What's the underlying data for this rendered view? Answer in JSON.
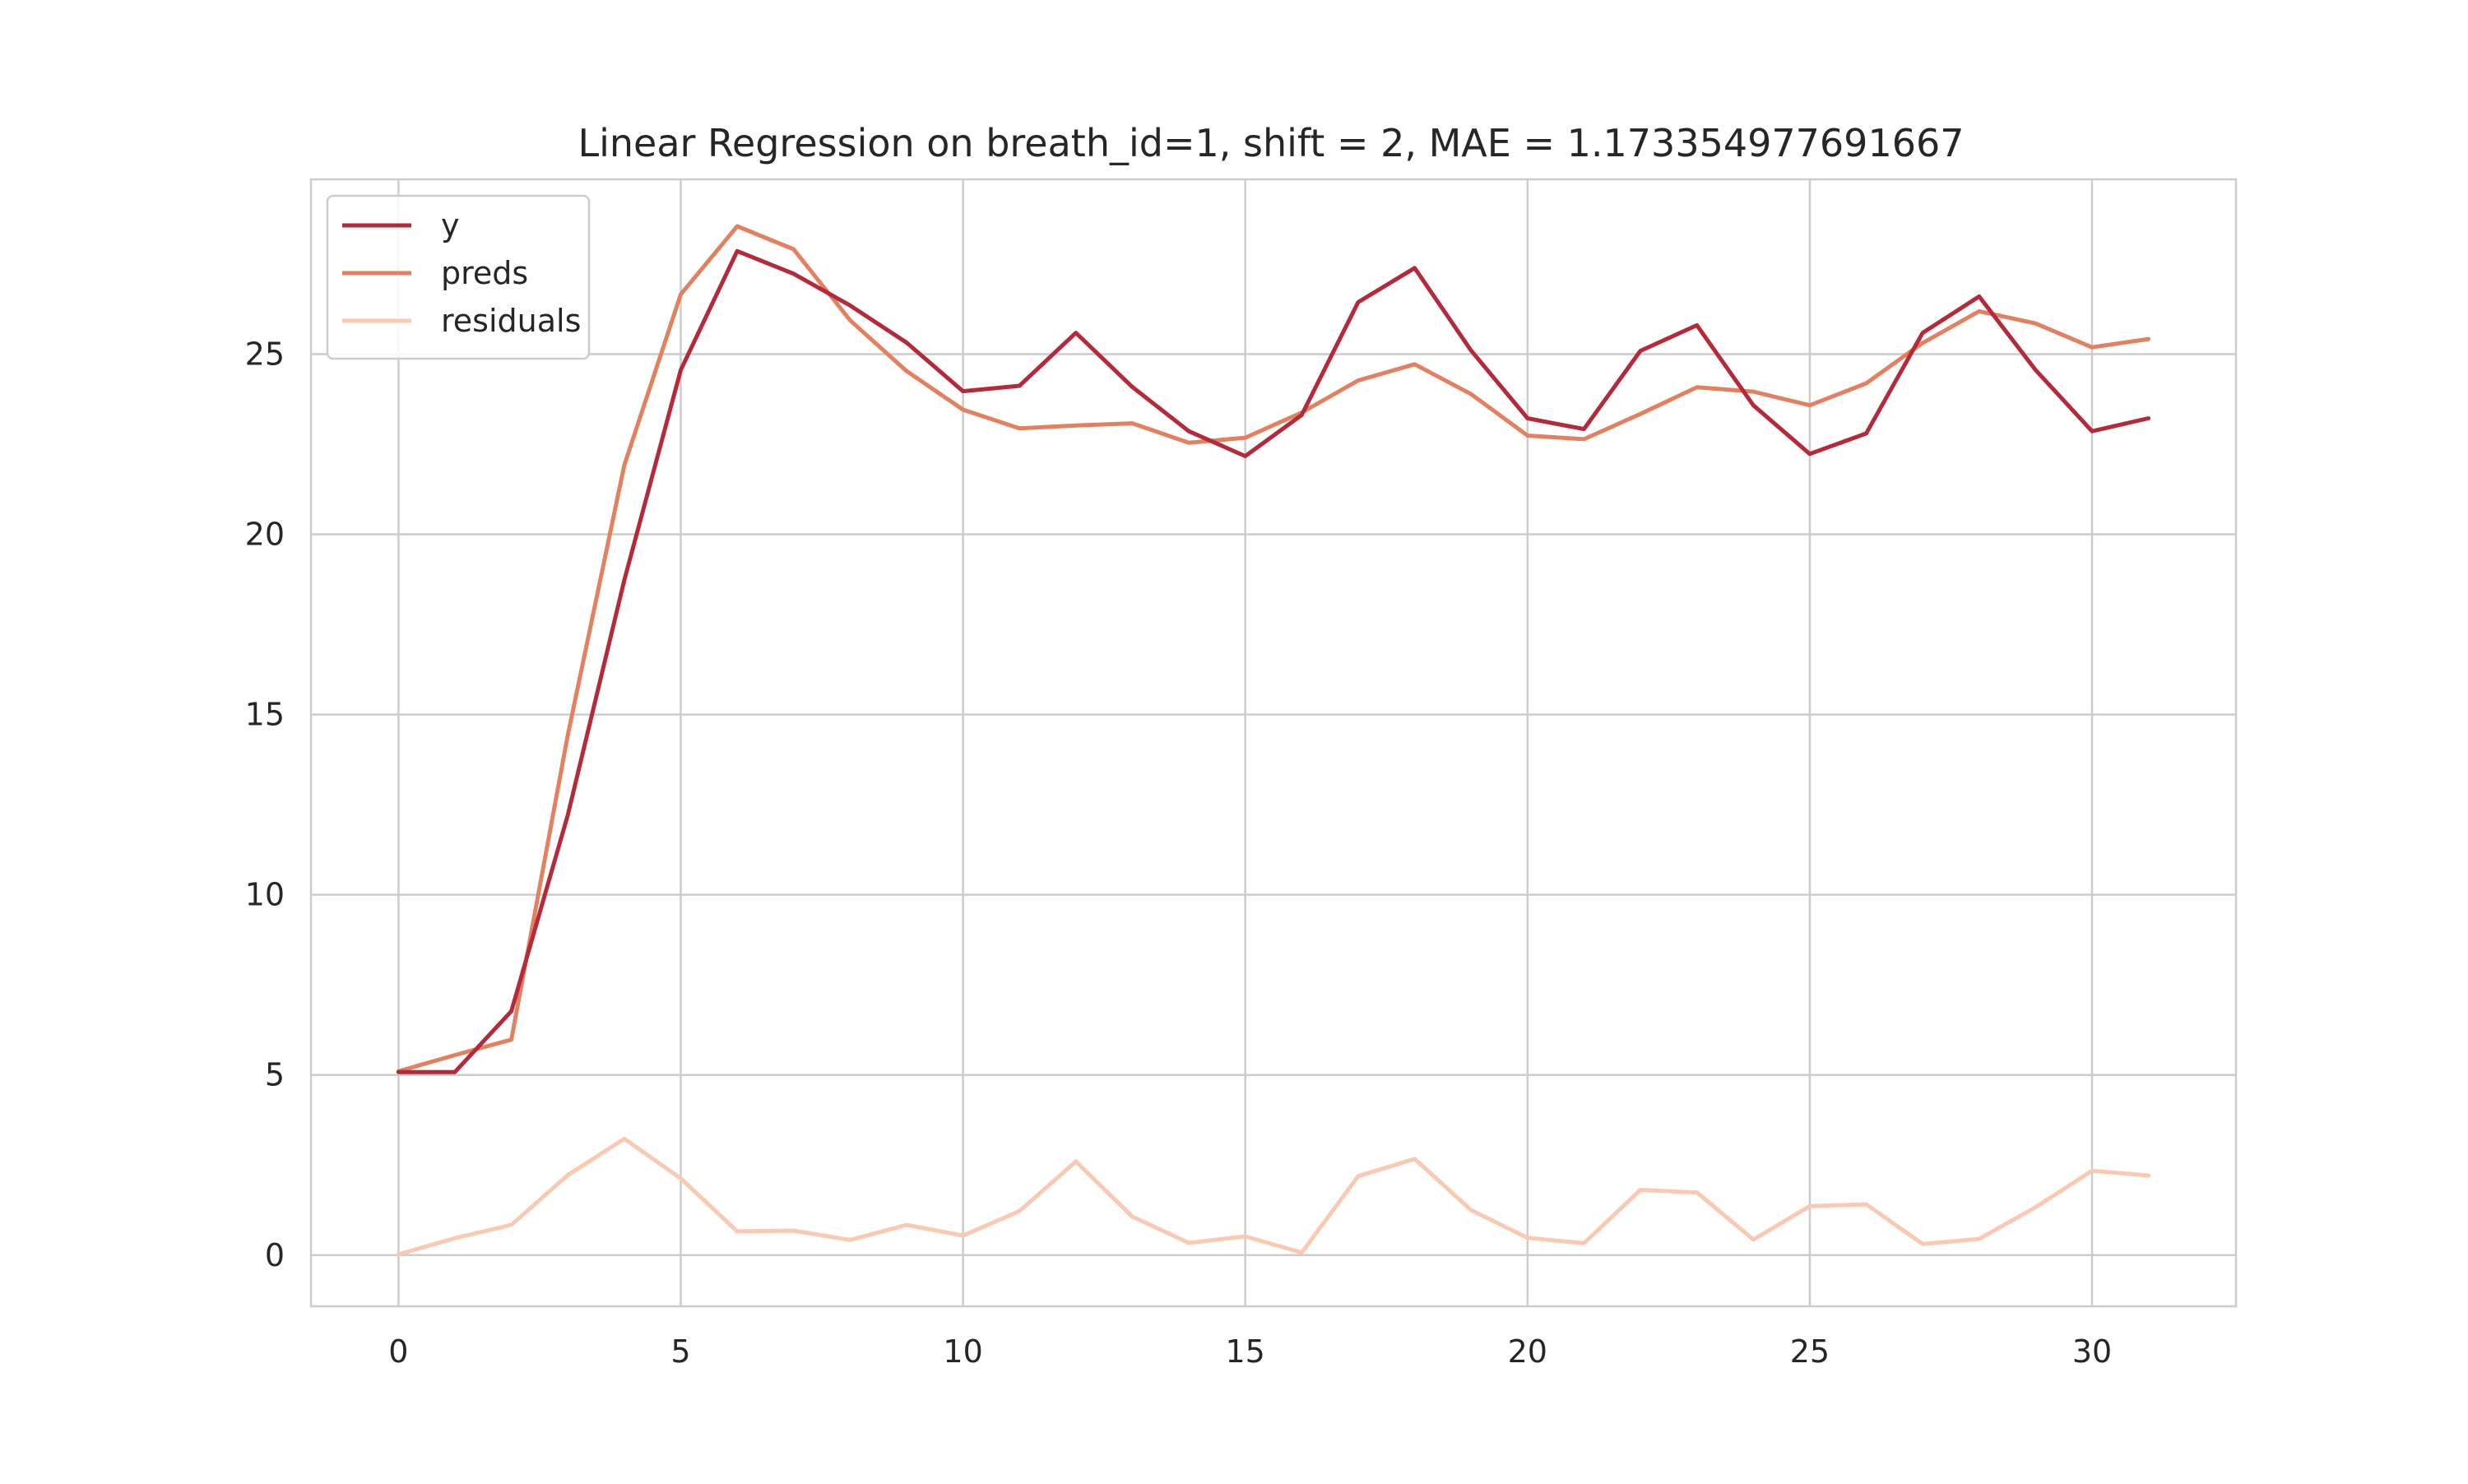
{
  "chart_data": {
    "type": "line",
    "title": "Linear Regression on breath_id=1, shift = 2, MAE = 1.173354977691667",
    "xlabel": "",
    "ylabel": "",
    "xlim": [
      -1.55,
      32.55
    ],
    "ylim": [
      -1.42,
      29.85
    ],
    "xticks": [
      0,
      5,
      10,
      15,
      20,
      25,
      30
    ],
    "yticks": [
      0,
      5,
      10,
      15,
      20,
      25
    ],
    "grid": true,
    "legend_position": "top-left",
    "x": [
      0,
      1,
      2,
      3,
      4,
      5,
      6,
      7,
      8,
      9,
      10,
      11,
      12,
      13,
      14,
      15,
      16,
      17,
      18,
      19,
      20,
      21,
      22,
      23,
      24,
      25,
      26,
      27,
      28,
      29,
      30,
      31
    ],
    "series": [
      {
        "name": "y",
        "color": "#b52a3a",
        "values": [
          5.08,
          5.08,
          6.77,
          12.21,
          18.73,
          24.56,
          27.86,
          27.23,
          26.35,
          25.32,
          23.97,
          24.12,
          25.59,
          24.09,
          22.86,
          22.17,
          23.31,
          26.44,
          27.39,
          25.1,
          23.22,
          22.92,
          25.09,
          25.8,
          23.58,
          22.23,
          22.8,
          25.59,
          26.6,
          24.56,
          22.86,
          23.22
        ]
      },
      {
        "name": "preds",
        "color": "#e2805f",
        "values": [
          5.1,
          5.55,
          5.98,
          14.43,
          21.92,
          26.66,
          28.55,
          27.91,
          25.94,
          24.53,
          23.46,
          22.94,
          23.02,
          23.08,
          22.54,
          22.68,
          23.38,
          24.27,
          24.72,
          23.89,
          22.74,
          22.64,
          23.34,
          24.08,
          23.96,
          23.58,
          24.19,
          25.31,
          26.19,
          25.85,
          25.19,
          25.42
        ]
      },
      {
        "name": "residuals",
        "color": "#f9c9b2",
        "values": [
          0.02,
          0.47,
          0.84,
          2.22,
          3.23,
          2.13,
          0.66,
          0.68,
          0.42,
          0.84,
          0.54,
          1.22,
          2.6,
          1.07,
          0.34,
          0.52,
          0.07,
          2.19,
          2.67,
          1.25,
          0.48,
          0.33,
          1.81,
          1.74,
          0.43,
          1.36,
          1.41,
          0.31,
          0.45,
          1.33,
          2.34,
          2.21
        ]
      }
    ]
  }
}
